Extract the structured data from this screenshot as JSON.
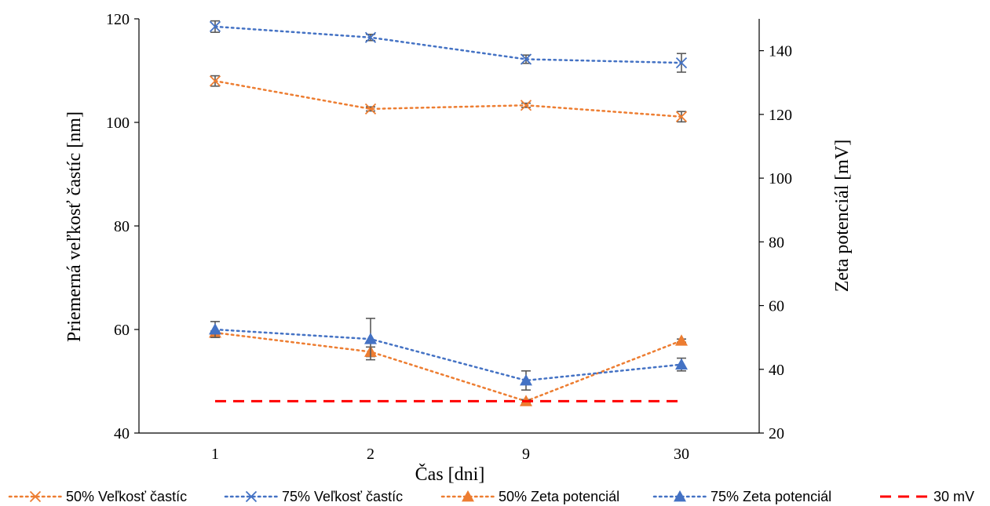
{
  "chart_data": {
    "type": "line",
    "categories": [
      "1",
      "2",
      "9",
      "30"
    ],
    "xlabel": "Čas [dni]",
    "ylabel_left": "Priemerná veľkosť častíc [nm]",
    "ylabel_right": "Zeta potenciál [mV]",
    "ylim_left": [
      40,
      120
    ],
    "yticks_left": [
      40,
      60,
      80,
      100,
      120
    ],
    "ylim_right": [
      20,
      150
    ],
    "yticks_right": [
      20,
      40,
      60,
      80,
      100,
      120,
      140
    ],
    "grid": false,
    "legend_position": "bottom",
    "series": [
      {
        "name": "50% Veľkosť častíc",
        "axis": "left",
        "marker": "x",
        "line": "dotted",
        "color": "#ED7D31",
        "values": [
          108.0,
          102.6,
          103.3,
          101.1
        ],
        "errors": [
          1.0,
          0.4,
          0.4,
          1.0
        ]
      },
      {
        "name": "75% Veľkosť častíc",
        "axis": "left",
        "marker": "x",
        "line": "dotted",
        "color": "#4472C4",
        "values": [
          118.5,
          116.4,
          112.2,
          111.5
        ],
        "errors": [
          1.1,
          0.6,
          0.8,
          1.8
        ]
      },
      {
        "name": "50% Zeta potenciál",
        "axis": "right",
        "marker": "triangle",
        "line": "dotted",
        "color": "#ED7D31",
        "values": [
          51.5,
          45.5,
          30.0,
          49.0
        ],
        "errors": [
          0.5,
          1.5,
          0.5,
          0.5
        ]
      },
      {
        "name": "75% Zeta potenciál",
        "axis": "right",
        "marker": "triangle",
        "line": "dotted",
        "color": "#4472C4",
        "values": [
          52.5,
          49.5,
          36.5,
          41.5
        ],
        "errors": [
          2.5,
          6.5,
          3.0,
          2.0
        ]
      },
      {
        "name": "30 mV",
        "axis": "right",
        "marker": "none",
        "line": "dashed",
        "color": "#FF0000",
        "values": [
          30,
          30,
          30,
          30
        ]
      }
    ]
  }
}
